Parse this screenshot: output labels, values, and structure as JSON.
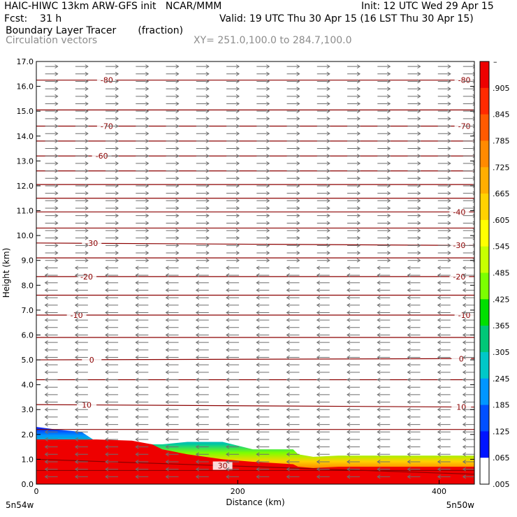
{
  "header": {
    "model_line": "HAIC-HIWC 13km ARW-GFS init   NCAR/MMM",
    "init_line": "Init: 12 UTC Wed 29 Apr 15",
    "fcst_line": "Fcst:    31 h",
    "valid_line": "Valid: 19 UTC Thu 30 Apr 15 (16 LST Thu 30 Apr 15)",
    "field_line": "Boundary Layer Tracer       (fraction)",
    "vector_line": "Circulation vectors",
    "xsect_line": "XY= 251.0,100.0 to 284.7,100.0"
  },
  "chart_data": {
    "type": "heatmap",
    "xlabel": "Distance (km)",
    "ylabel": "Height (km)",
    "xlim": [
      0,
      435
    ],
    "ylim": [
      0,
      17
    ],
    "x_ticks": [
      {
        "value": 0,
        "label": "0"
      },
      {
        "value": 200,
        "label": "200"
      },
      {
        "value": 400,
        "label": "400"
      }
    ],
    "x_end_labels": {
      "left": "5n54w",
      "right": "5n50w"
    },
    "y_ticks": [
      "0.0",
      "1.0",
      "2.0",
      "3.0",
      "4.0",
      "5.0",
      "6.0",
      "7.0",
      "8.0",
      "9.0",
      "10.0",
      "11.0",
      "12.0",
      "13.0",
      "14.0",
      "15.0",
      "16.0",
      "17.0"
    ],
    "colorbar": {
      "labels": [
        ".905",
        ".845",
        ".785",
        ".725",
        ".665",
        ".605",
        ".545",
        ".485",
        ".425",
        ".365",
        ".305",
        ".245",
        ".185",
        ".125",
        ".065",
        ".005"
      ],
      "top_label": "–",
      "colors": [
        "#ee0000",
        "#ff2a00",
        "#ff5a00",
        "#ff8a00",
        "#ffae00",
        "#ffd200",
        "#ffff00",
        "#c8ff00",
        "#7cff00",
        "#00e000",
        "#00c878",
        "#00c8c8",
        "#0096ff",
        "#0050ff",
        "#0014ff",
        "#ffffff"
      ]
    },
    "tracer_profile": {
      "x": [
        0,
        20,
        45,
        60,
        95,
        115,
        125,
        150,
        185,
        215,
        255,
        260,
        275,
        300,
        340,
        380,
        435
      ],
      "top_km": [
        2.3,
        2.2,
        2.1,
        1.7,
        1.7,
        1.6,
        1.6,
        1.7,
        1.7,
        1.4,
        1.4,
        1.2,
        1.1,
        1.15,
        1.15,
        1.15,
        1.15
      ],
      "red_top_km": [
        1.8,
        1.8,
        1.8,
        1.8,
        1.75,
        1.6,
        1.4,
        1.2,
        1.0,
        0.9,
        0.8,
        0.7,
        0.65,
        0.7,
        0.7,
        0.7,
        0.7
      ]
    },
    "contours": {
      "field": "temperature (C)",
      "color": "#8b0000",
      "levels": [
        {
          "label": "-80",
          "h_left": 16.25,
          "h_right": 16.25,
          "labels_at": [
            70,
            425
          ]
        },
        {
          "label": "-70",
          "h_left": 14.4,
          "h_right": 14.4,
          "labels_at": [
            70,
            425
          ]
        },
        {
          "label": "-60",
          "h_left": 13.2,
          "h_right": 13.2,
          "labels_at": [
            65
          ]
        },
        {
          "label": "-40",
          "h_left": 10.95,
          "h_right": 10.95,
          "labels_at": [
            420
          ]
        },
        {
          "label": "-30",
          "h_left": 9.7,
          "h_right": 9.6,
          "labels_at": [
            55,
            420
          ]
        },
        {
          "label": "-20",
          "h_left": 8.35,
          "h_right": 8.35,
          "labels_at": [
            50,
            420
          ]
        },
        {
          "label": "-10",
          "h_left": 6.8,
          "h_right": 6.8,
          "labels_at": [
            40,
            425
          ]
        },
        {
          "label": "0",
          "h_left": 5.0,
          "h_right": 5.05,
          "labels_at": [
            55,
            422
          ]
        },
        {
          "label": "10",
          "h_left": 3.2,
          "h_right": 3.1,
          "labels_at": [
            50,
            422
          ]
        },
        {
          "label": "30",
          "h_left": 1.0,
          "h_right": 0.4,
          "labels_at": [
            185
          ]
        }
      ],
      "unlabeled_h": [
        15.05,
        13.8,
        12.6,
        12.05,
        11.5,
        10.3,
        9.1,
        7.6,
        5.9,
        4.2,
        2.2,
        0.55
      ]
    },
    "vectors": {
      "columns_km": [
        15,
        45,
        75,
        105,
        135,
        165,
        195,
        225,
        255,
        285,
        315,
        345,
        375,
        405,
        430
      ],
      "rows_km": [
        0.3,
        0.6,
        0.9,
        1.2,
        1.5,
        1.8,
        2.1,
        2.4,
        2.7,
        3.0,
        3.3,
        3.6,
        3.9,
        4.2,
        4.5,
        4.8,
        5.1,
        5.4,
        5.7,
        6.0,
        6.3,
        6.6,
        6.9,
        7.2,
        7.5,
        7.8,
        8.1,
        8.4,
        8.7,
        9.0,
        9.3,
        9.6,
        9.9,
        10.2,
        10.5,
        10.8,
        11.1,
        11.4,
        11.7,
        12.0,
        12.3,
        12.6,
        12.9,
        13.2,
        13.5,
        13.8,
        14.1,
        14.4,
        14.7,
        15.0,
        15.3,
        15.6,
        15.9,
        16.2,
        16.5,
        16.8
      ],
      "color": "#6e6e6e",
      "direction_by_height": [
        {
          "below_km": 9.0,
          "u": -1
        },
        {
          "below_km": 17.0,
          "u": 1
        }
      ]
    }
  }
}
